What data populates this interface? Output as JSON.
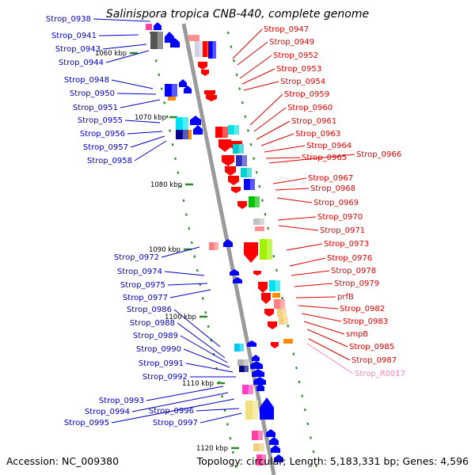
{
  "title": "Salinispora tropica CNB-440, complete genome",
  "footer": {
    "accession": "Accession: NC_009380",
    "topology": "Topology: circular; Length: 5,183,331 bp; Genes: 4,596"
  },
  "colors": {
    "left_label": "#0000cc",
    "right_label": "#e00000",
    "rna_label": "#ff80c0",
    "backbone": "#9a9a9a"
  },
  "kbp_ticks": [
    "1060 kbp",
    "1070 kbp",
    "1080 kbp",
    "1090 kbp",
    "1100 kbp",
    "1110 kbp",
    "1120 kbp"
  ],
  "left_labels": [
    "Strop_0938",
    "Strop_0941",
    "Strop_0943",
    "Strop_0944",
    "Strop_0948",
    "Strop_0950",
    "Strop_0951",
    "Strop_0955",
    "Strop_0956",
    "Strop_0957",
    "Strop_0958",
    "Strop_0972",
    "Strop_0974",
    "Strop_0975",
    "Strop_0977",
    "Strop_0986",
    "Strop_0988",
    "Strop_0989",
    "Strop_0990",
    "Strop_0991",
    "Strop_0992",
    "Strop_0993",
    "Strop_0994",
    "Strop_0995",
    "Strop_0996",
    "Strop_0997"
  ],
  "right_labels": [
    "Strop_0947",
    "Strop_0949",
    "Strop_0952",
    "Strop_0953",
    "Strop_0954",
    "Strop_0959",
    "Strop_0960",
    "Strop_0961",
    "Strop_0963",
    "Strop_0964",
    "Strop_0965",
    "Strop_0966",
    "Strop_0967",
    "Strop_0968",
    "Strop_0969",
    "Strop_0970",
    "Strop_0971",
    "Strop_0973",
    "Strop_0976",
    "Strop_0978",
    "Strop_0979",
    "prfB",
    "Strop_0982",
    "Strop_0983",
    "smpB",
    "Strop_0985",
    "Strop_0987",
    "Strop_R0017"
  ]
}
